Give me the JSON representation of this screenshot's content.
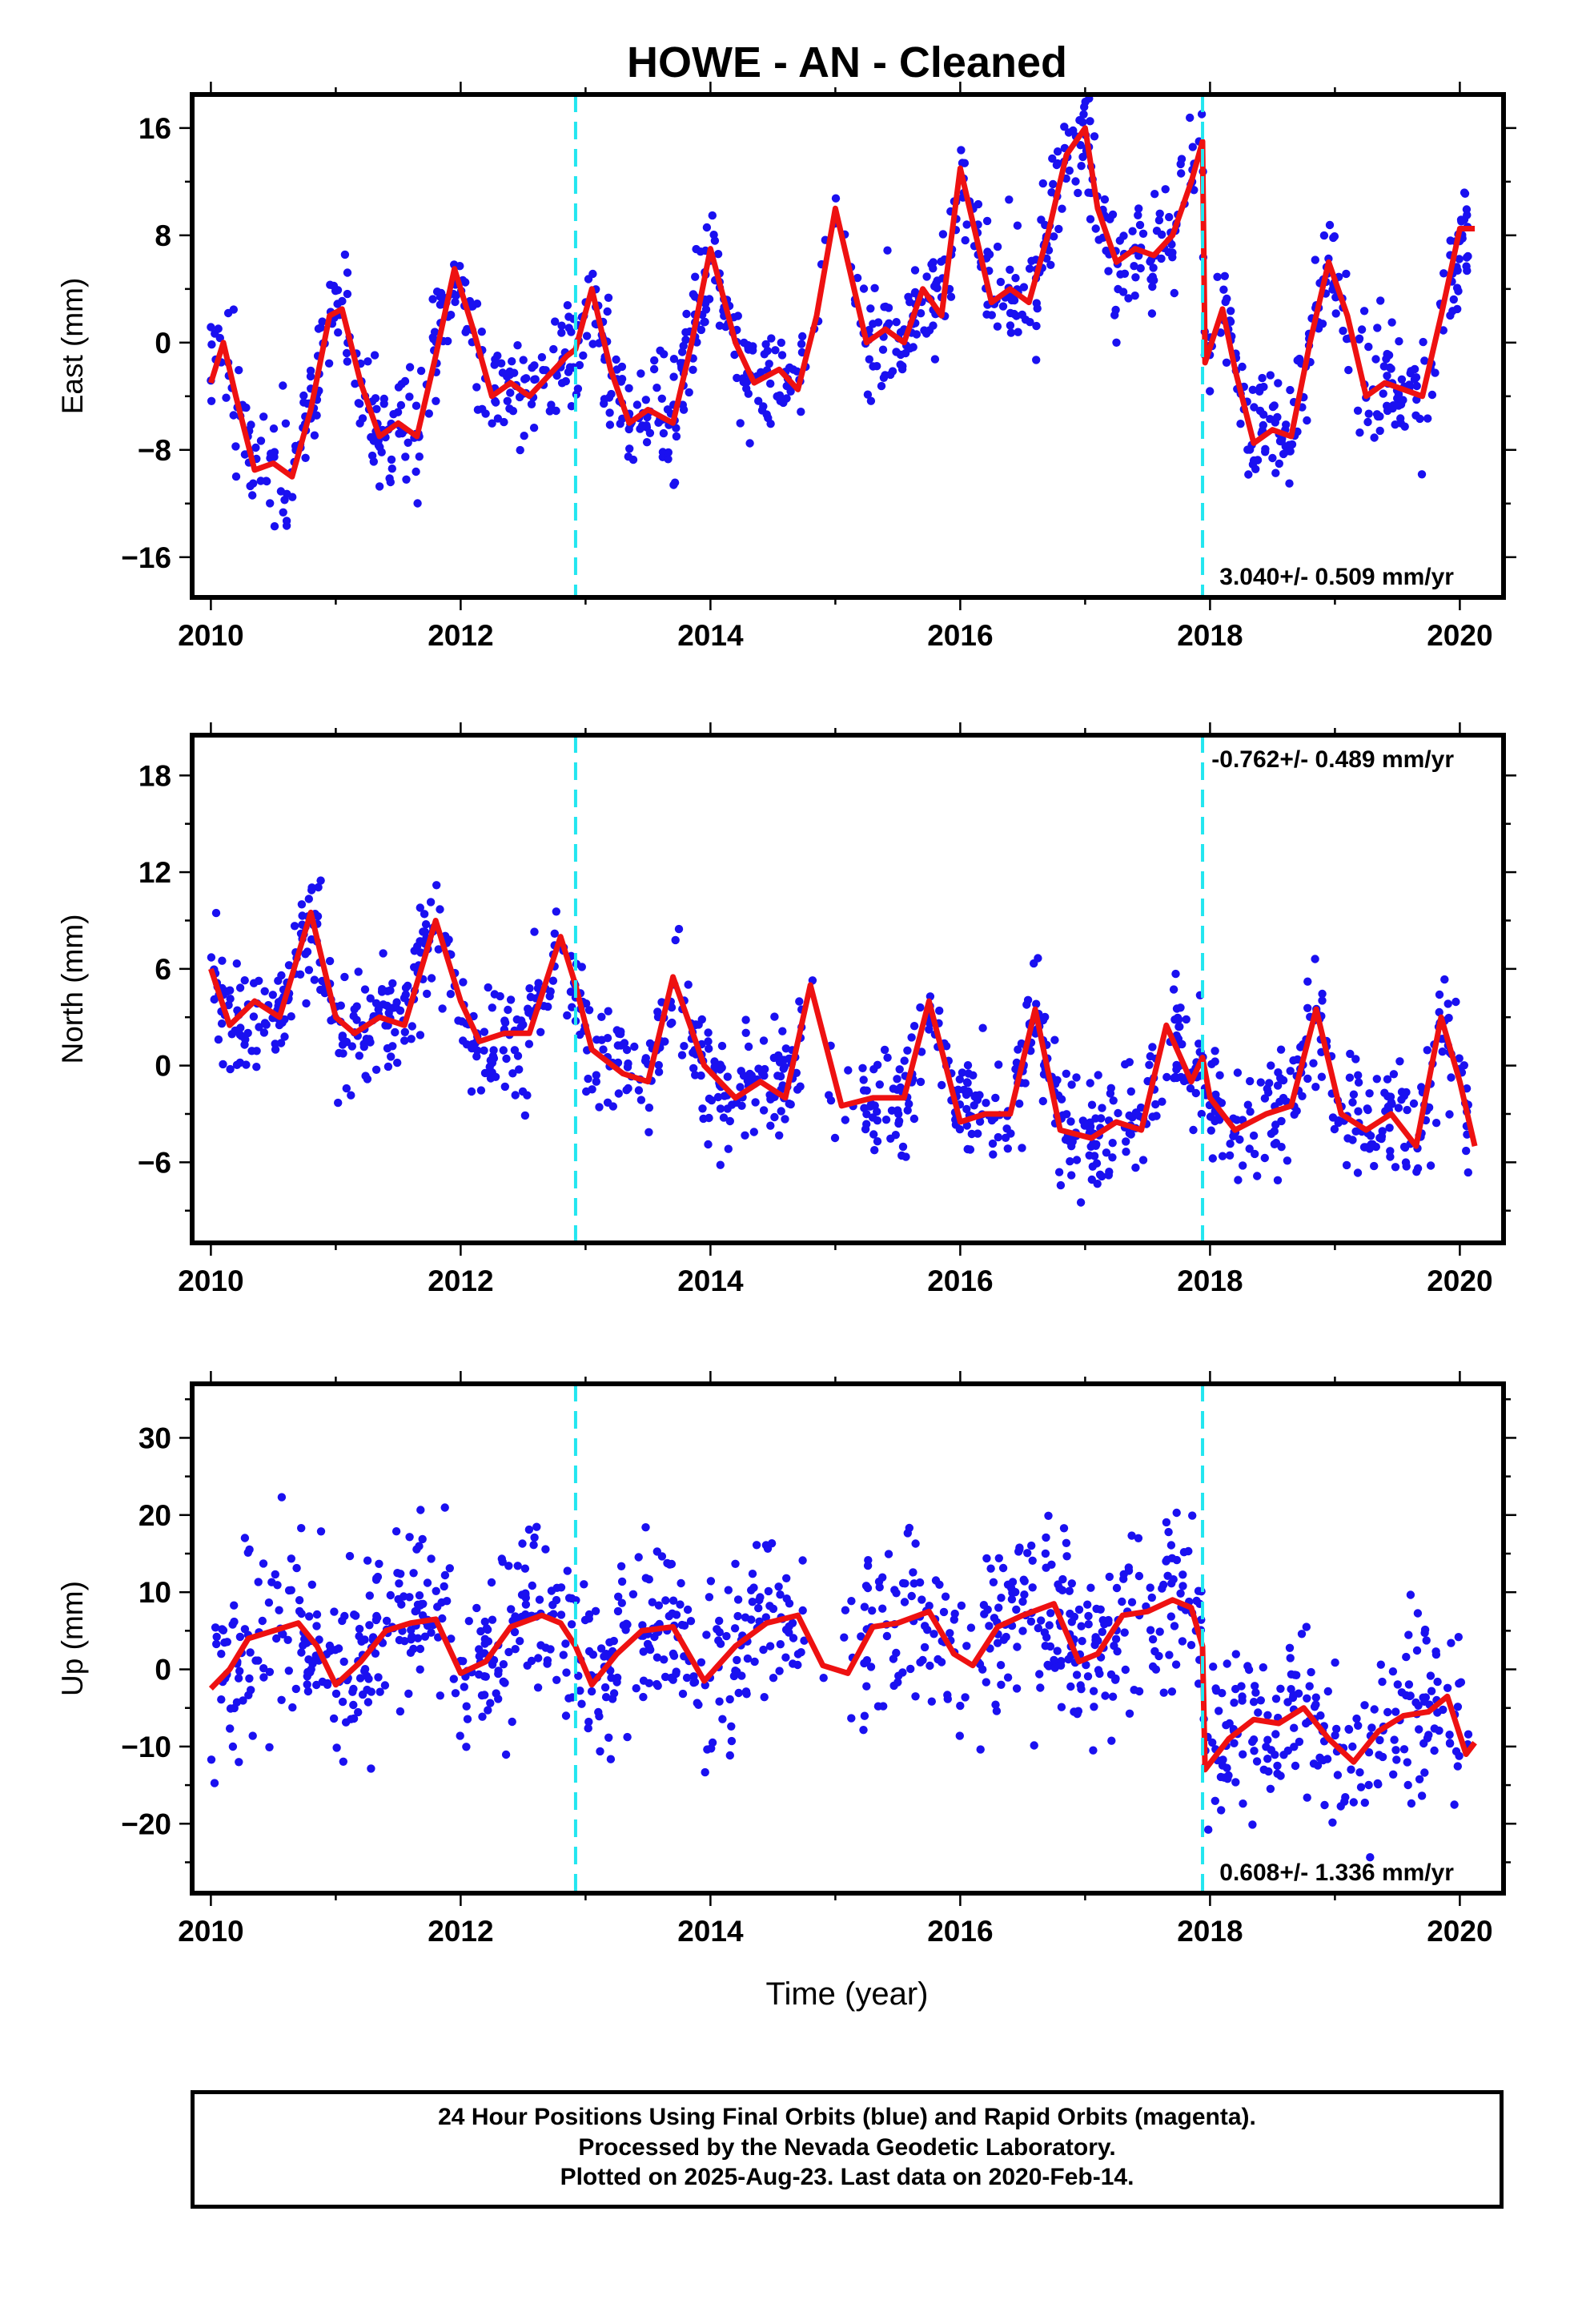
{
  "title": "HOWE  - AN - Cleaned",
  "colors": {
    "data_points": "#1a10f0",
    "fit_line": "#ee1111",
    "event_lines": "#22e6f0",
    "frame": "#000000"
  },
  "x_axis": {
    "label": "Time (year)",
    "ticks": [
      "2010",
      "2012",
      "2014",
      "2016",
      "2018",
      "2020"
    ]
  },
  "event_lines_year": [
    2012.92,
    2017.94
  ],
  "footer": {
    "line1": "24 Hour Positions Using Final Orbits (blue) and Rapid Orbits (magenta).",
    "line2": "Processed by the Nevada Geodetic Laboratory.",
    "line3": "Plotted on 2025-Aug-23. Last data on 2020-Feb-14."
  },
  "chart_data": [
    {
      "type": "scatter",
      "name": "East",
      "ylabel": "East (mm)",
      "xlabel": "",
      "xlim": [
        2009.85,
        2020.35
      ],
      "ylim": [
        -19,
        18.5
      ],
      "yticks": [
        -16,
        -8,
        0,
        8,
        16
      ],
      "rate": "3.040+/- 0.509 mm/yr",
      "rate_position": "bottom-right",
      "fit_x": [
        2010.0,
        2010.1,
        2010.2,
        2010.35,
        2010.5,
        2010.65,
        2010.8,
        2010.95,
        2011.05,
        2011.2,
        2011.35,
        2011.5,
        2011.65,
        2011.8,
        2011.95,
        2012.1,
        2012.25,
        2012.4,
        2012.55,
        2012.7,
        2012.85,
        2012.92,
        2013.05,
        2013.2,
        2013.35,
        2013.5,
        2013.7,
        2013.85,
        2014.0,
        2014.2,
        2014.35,
        2014.55,
        2014.7,
        2014.85,
        2015.0,
        2015.1,
        2015.25,
        2015.4,
        2015.55,
        2015.7,
        2015.85,
        2016.0,
        2016.1,
        2016.25,
        2016.4,
        2016.55,
        2016.7,
        2016.85,
        2017.0,
        2017.1,
        2017.25,
        2017.4,
        2017.55,
        2017.7,
        2017.85,
        2017.94,
        2017.96,
        2018.1,
        2018.2,
        2018.35,
        2018.5,
        2018.65,
        2018.8,
        2018.95,
        2019.1,
        2019.25,
        2019.4,
        2019.55,
        2019.7,
        2019.85,
        2020.0,
        2020.12
      ],
      "fit_y": [
        -3,
        0,
        -4,
        -9.5,
        -9,
        -10,
        -5,
        2,
        2.5,
        -3,
        -7,
        -6,
        -7,
        -1,
        5.5,
        1,
        -4,
        -3,
        -4,
        -2.5,
        -1,
        -0.5,
        4,
        -2,
        -6,
        -5,
        -6,
        0,
        7,
        0,
        -3,
        -2,
        -3.5,
        2,
        10,
        6,
        0,
        1,
        0,
        4,
        2,
        13,
        9,
        3,
        4,
        3,
        8,
        14,
        16,
        10,
        6,
        7,
        6.5,
        8,
        12,
        15,
        -1.5,
        2.5,
        -2,
        -7.5,
        -6.5,
        -7,
        0,
        6,
        2,
        -4,
        -3,
        -3.5,
        -4,
        2,
        8.5,
        8.5
      ],
      "point_seed": 11
    },
    {
      "type": "scatter",
      "name": "North",
      "ylabel": "North (mm)",
      "xlabel": "",
      "xlim": [
        2009.85,
        2020.35
      ],
      "ylim": [
        -11,
        20.5
      ],
      "yticks": [
        -6,
        0,
        6,
        12,
        18
      ],
      "rate": "-0.762+/- 0.489 mm/yr",
      "rate_position": "top-right",
      "fit_x": [
        2010.0,
        2010.15,
        2010.35,
        2010.55,
        2010.8,
        2011.0,
        2011.15,
        2011.35,
        2011.55,
        2011.8,
        2012.0,
        2012.15,
        2012.35,
        2012.55,
        2012.8,
        2012.92,
        2013.05,
        2013.3,
        2013.5,
        2013.7,
        2013.95,
        2014.2,
        2014.4,
        2014.6,
        2014.8,
        2015.05,
        2015.3,
        2015.55,
        2015.75,
        2016.0,
        2016.2,
        2016.4,
        2016.6,
        2016.8,
        2017.05,
        2017.25,
        2017.45,
        2017.65,
        2017.85,
        2017.94,
        2018.0,
        2018.2,
        2018.45,
        2018.65,
        2018.85,
        2019.05,
        2019.25,
        2019.45,
        2019.65,
        2019.85,
        2020.0,
        2020.12
      ],
      "fit_y": [
        6,
        2.5,
        4,
        3,
        9.5,
        3,
        2,
        3,
        2.5,
        9,
        4,
        1.5,
        2,
        2,
        8,
        5,
        1,
        -0.5,
        -1,
        5.5,
        0,
        -2,
        -1,
        -2,
        5,
        -2.5,
        -2,
        -2,
        4,
        -3.5,
        -3,
        -3,
        3.5,
        -4,
        -4.5,
        -3.5,
        -4,
        2.5,
        -1,
        0.5,
        -2,
        -4,
        -3,
        -2.5,
        3.5,
        -3,
        -4,
        -3,
        -5,
        3,
        -1,
        -5
      ],
      "point_seed": 23
    },
    {
      "type": "scatter",
      "name": "Up",
      "ylabel": "Up (mm)",
      "xlabel": "Time (year)",
      "xlim": [
        2009.85,
        2020.35
      ],
      "ylim": [
        -29,
        37
      ],
      "yticks": [
        -20,
        -10,
        0,
        10,
        20,
        30
      ],
      "rate": "0.608+/- 1.336 mm/yr",
      "rate_position": "bottom-right",
      "fit_x": [
        2010.0,
        2010.15,
        2010.3,
        2010.5,
        2010.7,
        2010.85,
        2011.0,
        2011.2,
        2011.4,
        2011.6,
        2011.8,
        2012.0,
        2012.2,
        2012.4,
        2012.65,
        2012.8,
        2012.92,
        2013.05,
        2013.25,
        2013.45,
        2013.7,
        2013.95,
        2014.2,
        2014.45,
        2014.7,
        2014.9,
        2015.1,
        2015.3,
        2015.5,
        2015.75,
        2015.95,
        2016.1,
        2016.3,
        2016.5,
        2016.75,
        2016.95,
        2017.1,
        2017.3,
        2017.5,
        2017.7,
        2017.85,
        2017.94,
        2017.96,
        2018.15,
        2018.35,
        2018.55,
        2018.75,
        2018.95,
        2019.15,
        2019.35,
        2019.55,
        2019.75,
        2019.9,
        2020.05,
        2020.12
      ],
      "fit_y": [
        -2.5,
        0,
        4,
        5,
        6,
        3,
        -2,
        1,
        5,
        6,
        6.5,
        -0.5,
        1,
        5.5,
        7,
        6,
        3,
        -2,
        2,
        5,
        5.5,
        -1.5,
        3,
        6,
        7,
        0.5,
        -0.5,
        5.5,
        6,
        7.5,
        2,
        0.5,
        5.5,
        7,
        8.5,
        1,
        2,
        7,
        7.5,
        9,
        8,
        3,
        -13,
        -9,
        -6.5,
        -7,
        -5,
        -9,
        -12,
        -8,
        -6,
        -5.5,
        -3.5,
        -11,
        -9.5
      ],
      "point_seed": 37
    }
  ]
}
